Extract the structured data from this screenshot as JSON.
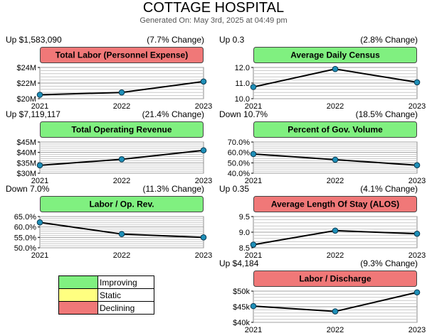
{
  "page": {
    "title": "COTTAGE HOSPITAL",
    "generated": "Generated On: May 3rd, 2025 at 04:49 pm"
  },
  "colors": {
    "improving": "#80f080",
    "static": "#ffff80",
    "declining": "#f07878",
    "line": "#000000",
    "marker": "#1e8fb8",
    "grid": "#c8c8c8"
  },
  "legend": [
    {
      "label": "Improving",
      "color": "#80f080"
    },
    {
      "label": "Static",
      "color": "#ffff80"
    },
    {
      "label": "Declining",
      "color": "#f07878"
    }
  ],
  "chart_data": [
    {
      "type": "line",
      "title": "Total Labor (Personnel Expense)",
      "status": "declining",
      "change": "Up $1,583,090",
      "pct_change": "(7.7% Change)",
      "x": [
        "2021",
        "2022",
        "2023"
      ],
      "values": [
        20500000,
        20800000,
        22200000
      ],
      "ylim": [
        20000000,
        24000000
      ],
      "ticks": [
        20000000,
        22000000,
        24000000
      ],
      "tick_labels": [
        "$20M",
        "$22M",
        "$24M"
      ],
      "grid": true
    },
    {
      "type": "line",
      "title": "Average Daily Census",
      "status": "improving",
      "change": "Up 0.3",
      "pct_change": "(2.8% Change)",
      "x": [
        "2021",
        "2022",
        "2023"
      ],
      "values": [
        10.75,
        11.9,
        11.05
      ],
      "ylim": [
        10.0,
        12.0
      ],
      "ticks": [
        10.0,
        11.0,
        12.0
      ],
      "tick_labels": [
        "10.0",
        "11.0",
        "12.0"
      ],
      "grid": true
    },
    {
      "type": "line",
      "title": "Total Operating Revenue",
      "status": "improving",
      "change": "Up $7,119,117",
      "pct_change": "(21.4% Change)",
      "x": [
        "2021",
        "2022",
        "2023"
      ],
      "values": [
        33800000,
        36700000,
        41000000
      ],
      "ylim": [
        30000000,
        45000000
      ],
      "ticks": [
        30000000,
        35000000,
        40000000,
        45000000
      ],
      "tick_labels": [
        "$30M",
        "$35M",
        "$40M",
        "$45M"
      ],
      "grid": true
    },
    {
      "type": "line",
      "title": "Percent of Gov. Volume",
      "status": "improving",
      "change": "Down 10.7%",
      "pct_change": "(18.5% Change)",
      "x": [
        "2021",
        "2022",
        "2023"
      ],
      "values": [
        58.5,
        53.0,
        47.7
      ],
      "ylim": [
        40.0,
        70.0
      ],
      "ticks": [
        40.0,
        50.0,
        60.0,
        70.0
      ],
      "tick_labels": [
        "40.0%",
        "50.0%",
        "60.0%",
        "70.0%"
      ],
      "grid": true
    },
    {
      "type": "line",
      "title": "Labor / Op. Rev.",
      "status": "improving",
      "change": "Down 7.0%",
      "pct_change": "(11.3% Change)",
      "x": [
        "2021",
        "2022",
        "2023"
      ],
      "values": [
        62.2,
        56.6,
        55.0
      ],
      "ylim": [
        50.0,
        65.0
      ],
      "ticks": [
        50.0,
        55.0,
        60.0,
        65.0
      ],
      "tick_labels": [
        "50.0%",
        "55.0%",
        "60.0%",
        "65.0%"
      ],
      "grid": true
    },
    {
      "type": "line",
      "title": "Average Length Of Stay (ALOS)",
      "status": "declining",
      "change": "Up 0.35",
      "pct_change": "(4.1% Change)",
      "x": [
        "2021",
        "2022",
        "2023"
      ],
      "values": [
        8.6,
        9.05,
        8.95
      ],
      "ylim": [
        8.5,
        9.5
      ],
      "ticks": [
        8.5,
        9.0,
        9.5
      ],
      "tick_labels": [
        "8.5",
        "9.0",
        "9.5"
      ],
      "grid": true
    },
    {
      "type": "line",
      "title": "Labor / Discharge",
      "status": "declining",
      "change": "Up $4,184",
      "pct_change": "(9.3% Change)",
      "x": [
        "2021",
        "2022",
        "2023"
      ],
      "values": [
        45200,
        43500,
        49600
      ],
      "ylim": [
        40000,
        50000
      ],
      "ticks": [
        40000,
        45000,
        50000
      ],
      "tick_labels": [
        "$40k",
        "$45k",
        "$50k"
      ],
      "grid": true
    }
  ]
}
